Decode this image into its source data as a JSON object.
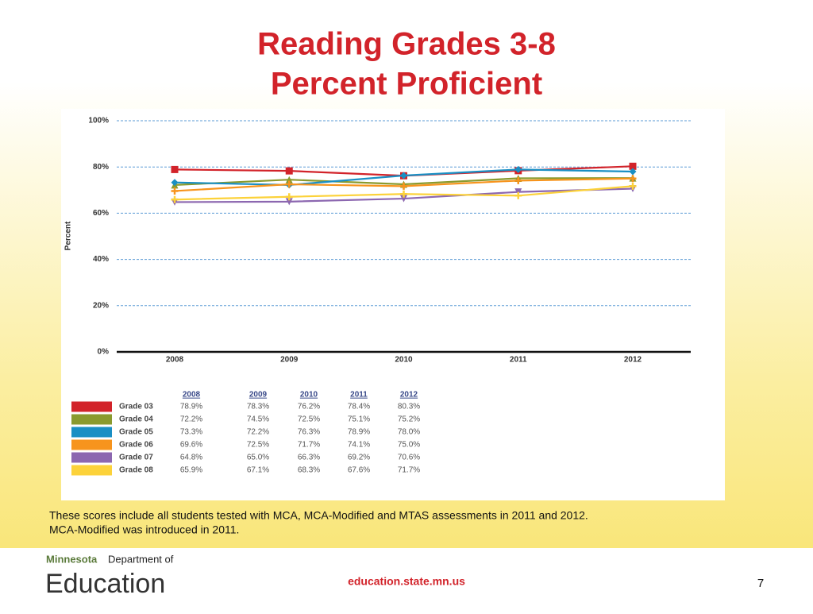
{
  "chart_data": {
    "type": "line",
    "title": "Reading Grades 3-8",
    "subtitle": "Percent Proficient",
    "ylabel": "Percent",
    "categories": [
      "2008",
      "2009",
      "2010",
      "2011",
      "2012"
    ],
    "ylim": [
      0,
      100
    ],
    "yticks": [
      {
        "value": 0,
        "label": "0%"
      },
      {
        "value": 20,
        "label": "20%"
      },
      {
        "value": 40,
        "label": "40%"
      },
      {
        "value": 60,
        "label": "60%"
      },
      {
        "value": 80,
        "label": "80%"
      },
      {
        "value": 100,
        "label": "100%"
      }
    ],
    "grid": true,
    "series": [
      {
        "name": "Grade 03",
        "color": "#d2232a",
        "marker": "square",
        "values": [
          78.9,
          78.3,
          76.2,
          78.4,
          80.3
        ],
        "value_labels": [
          "78.9%",
          "78.3%",
          "76.2%",
          "78.4%",
          "80.3%"
        ]
      },
      {
        "name": "Grade 04",
        "color": "#8a9a2e",
        "marker": "triangle",
        "values": [
          72.2,
          74.5,
          72.5,
          75.1,
          75.2
        ],
        "value_labels": [
          "72.2%",
          "74.5%",
          "72.5%",
          "75.1%",
          "75.2%"
        ]
      },
      {
        "name": "Grade 05",
        "color": "#1a8fc4",
        "marker": "diamond",
        "values": [
          73.3,
          72.2,
          76.3,
          78.9,
          78.0
        ],
        "value_labels": [
          "73.3%",
          "72.2%",
          "76.3%",
          "78.9%",
          "78.0%"
        ]
      },
      {
        "name": "Grade 06",
        "color": "#f7941d",
        "marker": "plus",
        "values": [
          69.6,
          72.5,
          71.7,
          74.1,
          75.0
        ],
        "value_labels": [
          "69.6%",
          "72.5%",
          "71.7%",
          "74.1%",
          "75.0%"
        ]
      },
      {
        "name": "Grade 07",
        "color": "#8c67b0",
        "marker": "triangle-down",
        "values": [
          64.8,
          65.0,
          66.3,
          69.2,
          70.6
        ],
        "value_labels": [
          "64.8%",
          "65.0%",
          "66.3%",
          "69.2%",
          "70.6%"
        ]
      },
      {
        "name": "Grade 08",
        "color": "#fcd23a",
        "marker": "plus",
        "values": [
          65.9,
          67.1,
          68.3,
          67.6,
          71.7
        ],
        "value_labels": [
          "65.9%",
          "67.1%",
          "68.3%",
          "67.6%",
          "71.7%"
        ]
      }
    ]
  },
  "footnote": [
    "These scores include all students tested with MCA, MCA-Modified and MTAS assessments in 2011 and 2012.",
    "MCA-Modified was introduced in 2011."
  ],
  "footer": {
    "logo_state": "Minnesota",
    "logo_dept": "Department of",
    "logo_main": "Education",
    "url": "education.state.mn.us",
    "page": "7"
  }
}
